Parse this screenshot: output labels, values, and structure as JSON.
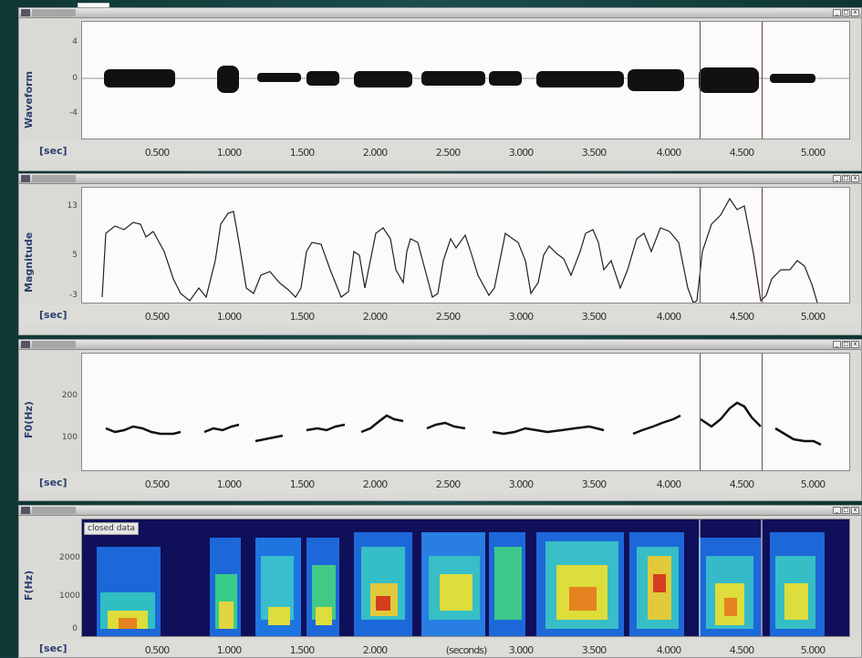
{
  "time_ticks": [
    "0.500",
    "1.000",
    "1.500",
    "2.000",
    "2.500",
    "3.000",
    "3.500",
    "4.000",
    "4.500",
    "5.000"
  ],
  "spec_time_ticks": [
    "0.500",
    "1.000",
    "1.500",
    "2.000",
    "(seconds)",
    "3.000",
    "3.500",
    "4.000",
    "4.500",
    "5.000"
  ],
  "panels": {
    "waveform": {
      "ylabel": "Waveform",
      "unit": "[sec]",
      "yticks": [
        "4",
        "0",
        "-4"
      ]
    },
    "magnitude": {
      "ylabel": "Magnitude",
      "unit": "[sec]",
      "yticks": [
        "13",
        "5",
        "-3"
      ]
    },
    "pitch": {
      "ylabel": "F0(Hz)",
      "unit": "[sec]",
      "yticks": [
        "200",
        "100"
      ]
    },
    "spectrogram": {
      "ylabel": "F(Hz)",
      "unit": "[sec]",
      "yticks": [
        "2000",
        "1000",
        "0"
      ],
      "overlay_label": "closed data"
    }
  },
  "window_buttons": [
    "_",
    "□",
    "x"
  ],
  "colors": {
    "background": "#123d3c",
    "panel": "#d9d9d6",
    "label": "#2d3e6e"
  }
}
